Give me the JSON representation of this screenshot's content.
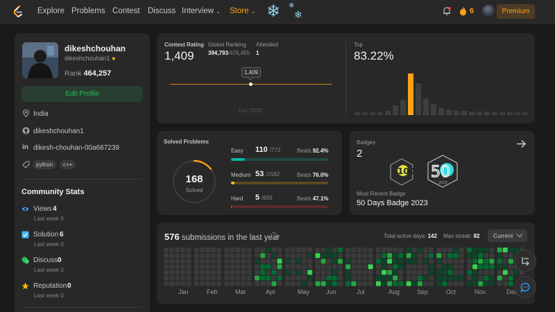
{
  "nav": {
    "items": [
      "Explore",
      "Problems",
      "Contest",
      "Discuss",
      "Interview",
      "Store"
    ],
    "streak": "6",
    "premium": "Premium"
  },
  "profile": {
    "name": "dikeshchouhan",
    "handle": "dikeshchouhan1",
    "rank_label": "Rank",
    "rank": "464,257",
    "edit_button": "Edit Profile",
    "location": "India",
    "github": "dikeshchouhan1",
    "linkedin": "dikesh-chouhan-00a667239",
    "tags": [
      "python",
      "c++"
    ]
  },
  "community": {
    "title": "Community Stats",
    "stats": [
      {
        "label": "Views",
        "value": "4",
        "sub": "Last week",
        "subval": "0",
        "icon": "eye-icon",
        "color": "#2f9bff"
      },
      {
        "label": "Solution",
        "value": "6",
        "sub": "Last week",
        "subval": "0",
        "icon": "check-icon",
        "color": "#42b4f5"
      },
      {
        "label": "Discuss",
        "value": "0",
        "sub": "Last week",
        "subval": "0",
        "icon": "discuss-icon",
        "color": "#2cbb5d"
      },
      {
        "label": "Reputation",
        "value": "0",
        "sub": "Last week",
        "subval": "0",
        "icon": "star-icon",
        "color": "#ffb800"
      }
    ]
  },
  "contest": {
    "rating_label": "Contest Rating",
    "rating": "1,409",
    "global_label": "Global Ranking",
    "global_rank": "394,793",
    "global_total": "/476,455",
    "attended_label": "Attended",
    "attended": "1",
    "tooltip": "1,409",
    "date": "Dec 2023",
    "top_label": "Top",
    "top": "83.22%"
  },
  "solved": {
    "title": "Solved Problems",
    "total": "168",
    "total_label": "Solved",
    "easy": {
      "label": "Easy",
      "count": "110",
      "total": "/772",
      "beats_label": "Beats",
      "beats": "92.4%"
    },
    "medium": {
      "label": "Medium",
      "count": "53",
      "total": "/1582",
      "beats_label": "Beats",
      "beats": "76.0%"
    },
    "hard": {
      "label": "Hard",
      "count": "5",
      "total": "/659",
      "beats_label": "Beats",
      "beats": "47.1%"
    },
    "colors": {
      "easy": "#00b8a3",
      "medium": "#ffc01e",
      "hard": "#ef4743"
    }
  },
  "badges": {
    "label": "Badges",
    "count": "2",
    "recent_label": "Most Recent Badge",
    "recent": "50 Days Badge 2023",
    "badge1_text": "100",
    "badge2_text": "50",
    "badge2_sub": "2023"
  },
  "submissions": {
    "count": "576",
    "title_rest": "submissions in the last year",
    "active_label": "Total active days:",
    "active": "142",
    "streak_label": "Max streak:",
    "streak": "82",
    "dropdown": "Current",
    "months": [
      "Jan",
      "Feb",
      "Mar",
      "Apr",
      "May",
      "Jun",
      "Jul",
      "Aug",
      "Sep",
      "Oct",
      "Nov",
      "Dec"
    ]
  }
}
